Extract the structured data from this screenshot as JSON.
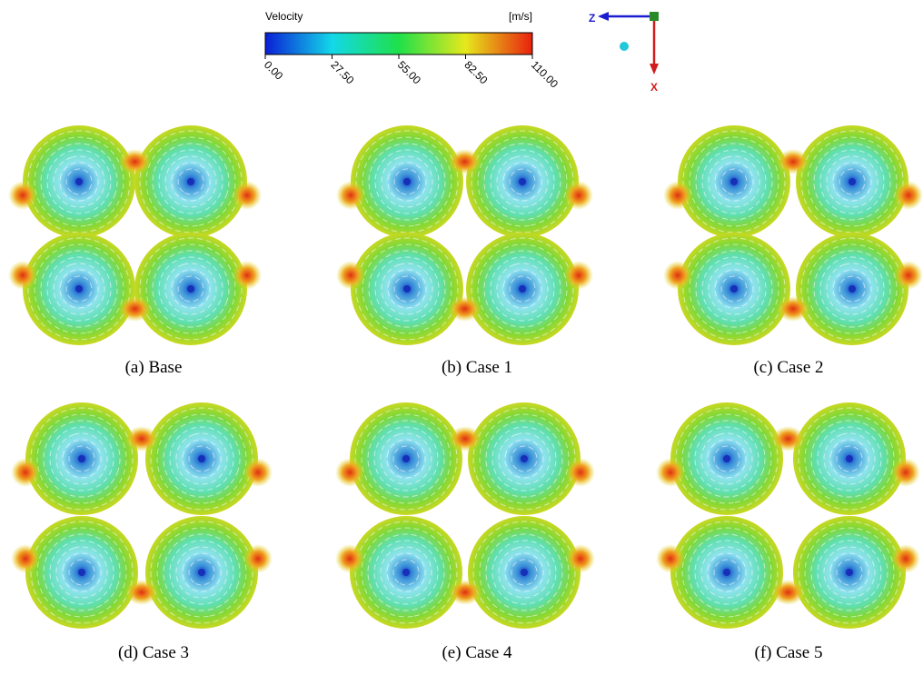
{
  "colorbar": {
    "title": "Velocity",
    "unit": "[m/s]",
    "lim": [
      0,
      110
    ],
    "ticks": [
      {
        "value": 0,
        "label": "0.00"
      },
      {
        "value": 27.5,
        "label": "27.50"
      },
      {
        "value": 55,
        "label": "55.00"
      },
      {
        "value": 82.5,
        "label": "82.50"
      },
      {
        "value": 110,
        "label": "110.00"
      }
    ]
  },
  "axes": {
    "z": "Z",
    "x": "X"
  },
  "panels": [
    {
      "caption": "(a) Base"
    },
    {
      "caption": "(b) Case 1"
    },
    {
      "caption": "(c) Case 2"
    },
    {
      "caption": "(d) Case 3"
    },
    {
      "caption": "(e) Case 4"
    },
    {
      "caption": "(f) Case 5"
    }
  ]
}
